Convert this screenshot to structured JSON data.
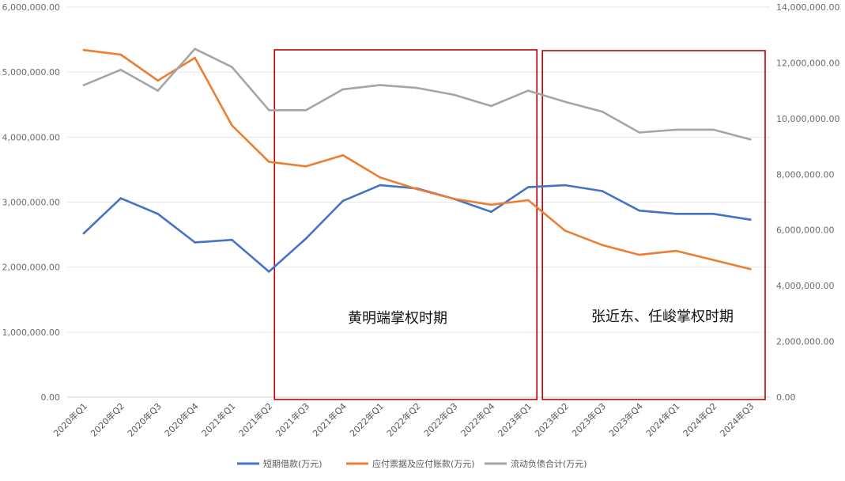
{
  "chart_data": {
    "type": "line",
    "title": "",
    "categories": [
      "2020年Q1",
      "2020年Q2",
      "2020年Q3",
      "2020年Q4",
      "2021年Q1",
      "2021年Q2",
      "2021年Q3",
      "2021年Q4",
      "2022年Q1",
      "2022年Q2",
      "2022年Q3",
      "2022年Q4",
      "2023年Q1",
      "2023年Q2",
      "2023年Q3",
      "2023年Q4",
      "2024年Q1",
      "2024年Q2",
      "2024年Q3"
    ],
    "left_axis": {
      "ylim": [
        0,
        6000000
      ],
      "tick_values": [
        0,
        1000000,
        2000000,
        3000000,
        4000000,
        5000000,
        6000000
      ],
      "tick_labels": [
        "0.00",
        "1,000,000.00",
        "2,000,000.00",
        "3,000,000.00",
        "4,000,000.00",
        "5,000,000.00",
        "6,000,000.00"
      ]
    },
    "right_axis": {
      "ylim": [
        0,
        14000000
      ],
      "tick_values": [
        0,
        2000000,
        4000000,
        6000000,
        8000000,
        10000000,
        12000000,
        14000000
      ],
      "tick_labels": [
        "0.00",
        "2,000,000.00",
        "4,000,000.00",
        "6,000,000.00",
        "8,000,000.00",
        "10,000,000.00",
        "12,000,000.00",
        "14,000,000.00"
      ]
    },
    "grid": true,
    "legend_position": "bottom",
    "series": [
      {
        "name": "短期借款(万元)",
        "axis": "left",
        "color": "#4472c4",
        "values": [
          2520000,
          3060000,
          2820000,
          2380000,
          2420000,
          1930000,
          2440000,
          3020000,
          3260000,
          3210000,
          3050000,
          2850000,
          3230000,
          3260000,
          3170000,
          2870000,
          2820000,
          2820000,
          2730000
        ]
      },
      {
        "name": "应付票据及应付账款(万元)",
        "axis": "left",
        "color": "#ed7d31",
        "values": [
          5340000,
          5270000,
          4870000,
          5220000,
          4180000,
          3620000,
          3550000,
          3720000,
          3380000,
          3200000,
          3050000,
          2960000,
          3030000,
          2560000,
          2340000,
          2190000,
          2250000,
          2110000,
          1970000
        ]
      },
      {
        "name": "流动负债合计(万元)",
        "axis": "right",
        "color": "#a5a5a5",
        "values": [
          11200000,
          11750000,
          11000000,
          12500000,
          11850000,
          10300000,
          10300000,
          11050000,
          11200000,
          11100000,
          10850000,
          10450000,
          11000000,
          10600000,
          10250000,
          9500000,
          9600000,
          9600000,
          9250000
        ]
      }
    ],
    "annotations": [
      {
        "label": "黄明端掌权时期",
        "start_category": "2021年Q2",
        "end_category": "2023年Q1",
        "box_color": "#c00000"
      },
      {
        "label": "张近东、任峻掌权时期",
        "start_category": "2023年Q1",
        "end_category": "2024年Q3",
        "box_color": "#c00000"
      }
    ]
  }
}
